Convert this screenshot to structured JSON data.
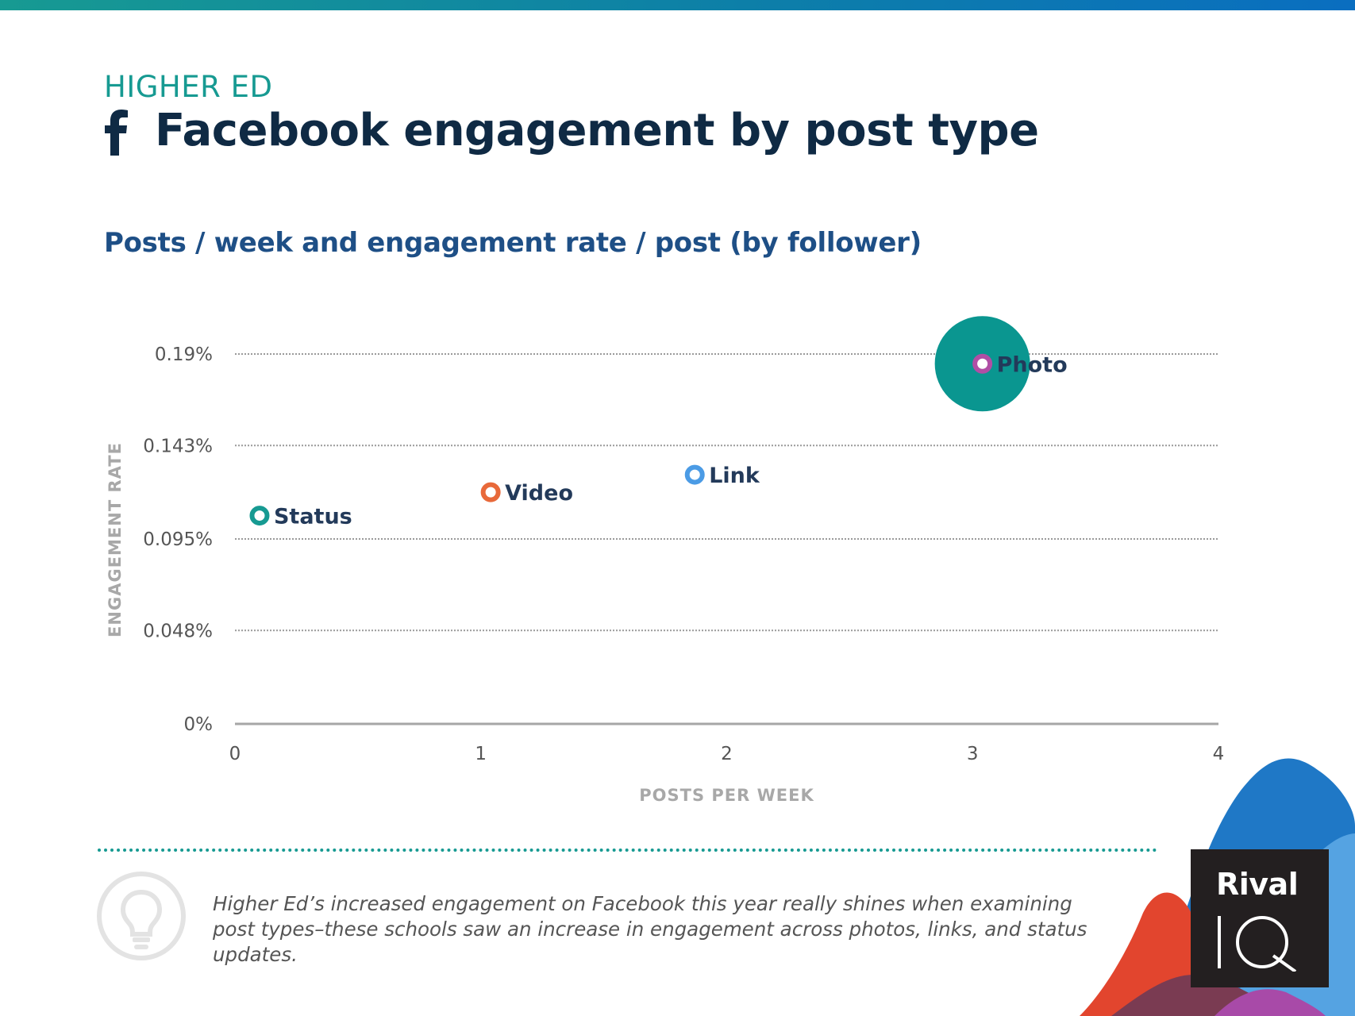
{
  "header": {
    "eyebrow": "HIGHER ED",
    "title": "Facebook engagement by post type",
    "subtitle": "Posts / week and engagement rate / post (by follower)"
  },
  "chart_data": {
    "type": "scatter",
    "xlabel": "POSTS PER WEEK",
    "ylabel": "ENGAGEMENT RATE",
    "xlim": [
      0,
      4
    ],
    "ylim": [
      0,
      0.19
    ],
    "x_ticks": [
      0,
      1,
      2,
      3,
      4
    ],
    "x_tick_labels": [
      "0",
      "1",
      "2",
      "3",
      "4"
    ],
    "y_ticks": [
      0,
      0.048,
      0.095,
      0.143,
      0.19
    ],
    "y_tick_labels": [
      "0%",
      "0.048%",
      "0.095%",
      "0.143%",
      "0.19%"
    ],
    "grid": "horizontal dotted",
    "points": [
      {
        "label": "Status",
        "x": 0.1,
        "y": 0.107,
        "color": "#179a92"
      },
      {
        "label": "Video",
        "x": 1.04,
        "y": 0.119,
        "color": "#e8693a"
      },
      {
        "label": "Link",
        "x": 1.87,
        "y": 0.128,
        "color": "#4b9be5"
      },
      {
        "label": "Photo",
        "x": 3.04,
        "y": 0.185,
        "color": "#b04ea5",
        "halo_color": "#0a9690"
      }
    ]
  },
  "footer": {
    "insight": "Higher Ed’s increased engagement on Facebook this year really shines when examining post types–these schools saw an increase in engagement across photos, links, and status updates.",
    "icon": "lightbulb-icon"
  },
  "brand": {
    "logo_word": "Rival",
    "logo_mark_text": "IQ",
    "colors": {
      "teal": "#179a92",
      "navy": "#0f2a44",
      "blue": "#1e4f86"
    }
  }
}
